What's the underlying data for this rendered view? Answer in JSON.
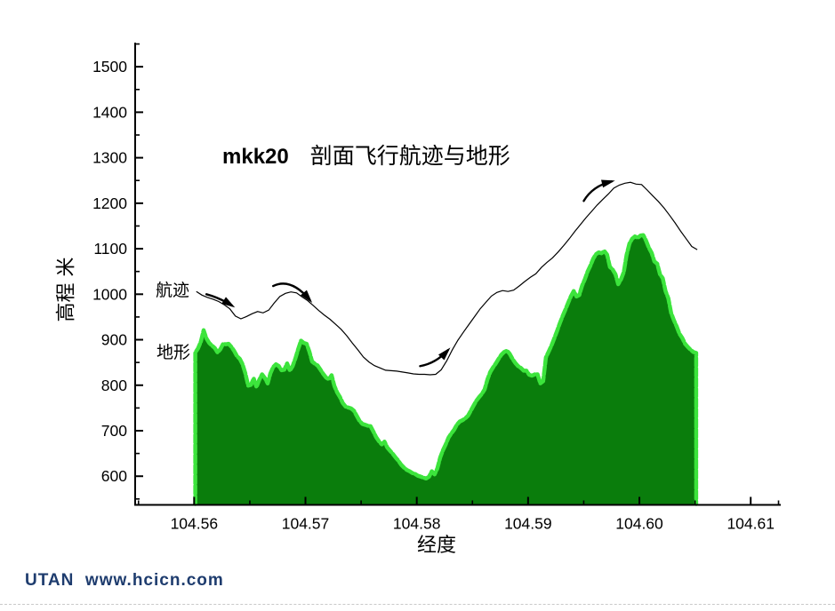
{
  "page": {
    "background": "#ffffff"
  },
  "footer": {
    "text": "UTAN  www.hcicn.com",
    "color": "#1e3c6e"
  },
  "chart_data": {
    "type": "area",
    "title_prefix": "mkk20",
    "title": "剖面飞行航迹与地形",
    "xlabel": "经度",
    "ylabel": "高程 米",
    "xlim": [
      104.5547,
      104.6127
    ],
    "ylim": [
      537,
      1553
    ],
    "grid": false,
    "x_ticks_major": [
      104.56,
      104.57,
      104.58,
      104.59,
      104.6,
      104.61
    ],
    "x_tick_labels": [
      "104.56",
      "104.57",
      "104.58",
      "104.59",
      "104.60",
      "104.61"
    ],
    "x_ticks_minor": [
      104.555,
      104.565,
      104.575,
      104.585,
      104.595,
      104.605,
      104.6125
    ],
    "y_ticks_major": [
      600,
      700,
      800,
      900,
      1000,
      1100,
      1200,
      1300,
      1400,
      1500
    ],
    "y_tick_labels": [
      "600",
      "700",
      "800",
      "900",
      "1000",
      "1100",
      "1200",
      "1300",
      "1400",
      "1500"
    ],
    "y_ticks_minor": [
      550,
      650,
      750,
      850,
      950,
      1050,
      1150,
      1250,
      1350,
      1450,
      1550
    ],
    "colors": {
      "terrain_fill": "#0a7d0c",
      "terrain_edge": "#3ce43c",
      "trajectory": "#000000",
      "axis": "#000000"
    },
    "series": [
      {
        "name": "地形",
        "type": "area",
        "lon_start": 104.5601,
        "lon_step": 0.00025,
        "elevations": [
          872,
          881,
          896,
          921,
          903,
          893,
          887,
          882,
          872,
          879,
          891,
          890,
          891,
          884,
          875,
          864,
          858,
          846,
          826,
          799,
          801,
          815,
          796,
          812,
          824,
          816,
          804,
          826,
          840,
          846,
          842,
          833,
          834,
          848,
          832,
          842,
          859,
          880,
          898,
          893,
          891,
          874,
          852,
          847,
          843,
          834,
          825,
          817,
          813,
          822,
          798,
          784,
          774,
          761,
          753,
          751,
          749,
          744,
          733,
          722,
          715,
          713,
          711,
          710,
          698,
          686,
          677,
          670,
          676,
          663,
          656,
          649,
          641,
          634,
          625,
          619,
          614,
          611,
          607,
          605,
          601,
          599,
          597,
          595,
          599,
          611,
          604,
          617,
          641,
          657,
          670,
          685,
          694,
          702,
          713,
          720,
          723,
          727,
          733,
          744,
          755,
          766,
          774,
          781,
          791,
          813,
          829,
          839,
          848,
          858,
          867,
          873,
          876,
          869,
          858,
          849,
          842,
          838,
          832,
          832,
          823,
          821,
          824,
          824,
          804,
          809,
          861,
          874,
          887,
          903,
          919,
          936,
          952,
          966,
          981,
          996,
          1007,
          995,
          998,
          1019,
          1033,
          1050,
          1063,
          1078,
          1088,
          1092,
          1090,
          1095,
          1087,
          1060,
          1054,
          1044,
          1022,
          1033,
          1049,
          1086,
          1111,
          1122,
          1127,
          1124,
          1129,
          1130,
          1118,
          1102,
          1091,
          1072,
          1067,
          1044,
          1035,
          1007,
          991,
          959,
          943,
          929,
          913,
          904,
          891,
          884,
          878,
          873,
          871
        ]
      },
      {
        "name": "航迹",
        "type": "line",
        "lon_start": 104.5602,
        "lon_step": 0.0005,
        "elevations": [
          1006,
          998,
          993,
          989,
          984,
          977,
          968,
          952,
          946,
          951,
          957,
          962,
          959,
          965,
          981,
          995,
          1002,
          1005,
          1003,
          994,
          986,
          975,
          964,
          954,
          945,
          934,
          923,
          909,
          893,
          878,
          862,
          851,
          843,
          838,
          833,
          832,
          831,
          829,
          827,
          825,
          824,
          824,
          823,
          824,
          834,
          854,
          878,
          899,
          917,
          934,
          951,
          968,
          982,
          996,
          1004,
          1008,
          1006,
          1009,
          1018,
          1028,
          1037,
          1045,
          1059,
          1070,
          1080,
          1093,
          1107,
          1122,
          1138,
          1153,
          1168,
          1182,
          1196,
          1208,
          1220,
          1233,
          1240,
          1244,
          1246,
          1242,
          1241,
          1229,
          1216,
          1204,
          1190,
          1174,
          1157,
          1139,
          1122,
          1105,
          1098
        ]
      }
    ],
    "annotations": {
      "track_label": {
        "text": "航迹",
        "lon": 104.5565,
        "elev": 1016
      },
      "terrain_label": {
        "text": "地形",
        "lon": 104.5566,
        "elev": 879
      },
      "arrows": [
        {
          "p0": [
            104.5611,
            1000
          ],
          "p1": [
            104.5623,
            992
          ],
          "p2": [
            104.5634,
            975
          ]
        },
        {
          "p0": [
            104.5671,
            1018
          ],
          "p1": [
            104.5687,
            1037
          ],
          "p2": [
            104.5704,
            987
          ]
        },
        {
          "p0": [
            104.5803,
            842
          ],
          "p1": [
            104.5817,
            848
          ],
          "p2": [
            104.5828,
            877
          ]
        },
        {
          "p0": [
            104.595,
            1205
          ],
          "p1": [
            104.5958,
            1238
          ],
          "p2": [
            104.5975,
            1248
          ]
        }
      ]
    }
  }
}
